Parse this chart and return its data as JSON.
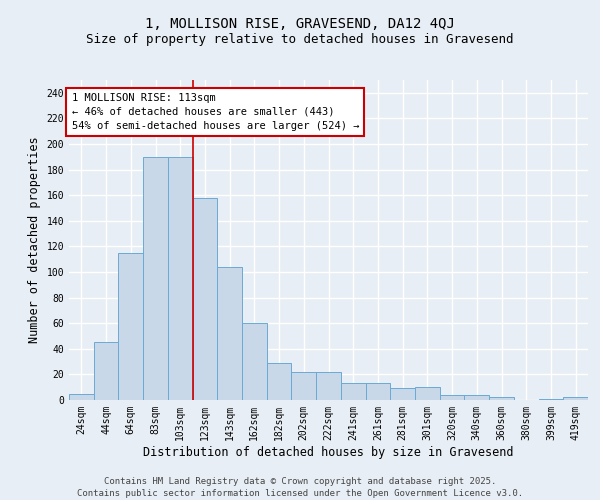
{
  "title_line1": "1, MOLLISON RISE, GRAVESEND, DA12 4QJ",
  "title_line2": "Size of property relative to detached houses in Gravesend",
  "xlabel": "Distribution of detached houses by size in Gravesend",
  "ylabel": "Number of detached properties",
  "categories": [
    "24sqm",
    "44sqm",
    "64sqm",
    "83sqm",
    "103sqm",
    "123sqm",
    "143sqm",
    "162sqm",
    "182sqm",
    "202sqm",
    "222sqm",
    "241sqm",
    "261sqm",
    "281sqm",
    "301sqm",
    "320sqm",
    "340sqm",
    "360sqm",
    "380sqm",
    "399sqm",
    "419sqm"
  ],
  "values": [
    5,
    45,
    115,
    190,
    190,
    158,
    104,
    60,
    29,
    22,
    22,
    13,
    13,
    9,
    10,
    4,
    4,
    2,
    0,
    1,
    2
  ],
  "bar_color": "#c8d8e8",
  "bar_edge_color": "#6aaad4",
  "background_color": "#e8eef5",
  "grid_color": "#ffffff",
  "property_label": "1 MOLLISON RISE: 113sqm",
  "annotation_line1": "← 46% of detached houses are smaller (443)",
  "annotation_line2": "54% of semi-detached houses are larger (524) →",
  "annotation_box_color": "#ffffff",
  "annotation_box_edge": "#cc0000",
  "vline_color": "#cc0000",
  "vline_x_index": 4.5,
  "ylim": [
    0,
    250
  ],
  "yticks": [
    0,
    20,
    40,
    60,
    80,
    100,
    120,
    140,
    160,
    180,
    200,
    220,
    240
  ],
  "footer_line1": "Contains HM Land Registry data © Crown copyright and database right 2025.",
  "footer_line2": "Contains public sector information licensed under the Open Government Licence v3.0.",
  "title_fontsize": 10,
  "subtitle_fontsize": 9,
  "axis_fontsize": 8.5,
  "tick_fontsize": 7,
  "footer_fontsize": 6.5,
  "annotation_fontsize": 7.5
}
